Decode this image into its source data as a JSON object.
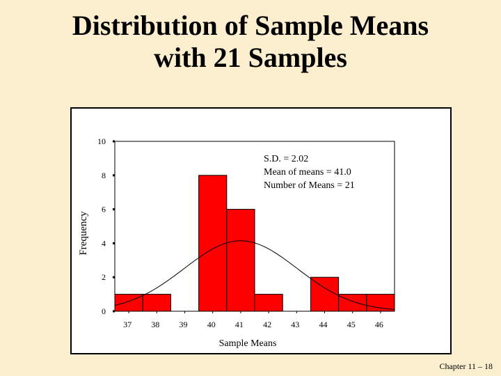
{
  "slide": {
    "title_line1": "Distribution of Sample Means",
    "title_line2": "with 21 Samples",
    "footer": "Chapter 11 – 18"
  },
  "chart_data": {
    "type": "bar",
    "x": [
      37,
      38,
      39,
      40,
      41,
      42,
      43,
      44,
      45,
      46
    ],
    "values": [
      1,
      1,
      0,
      8,
      6,
      1,
      0,
      2,
      1,
      1
    ],
    "xlabel": "Sample Means",
    "ylabel": "Frequency",
    "ylim": [
      0,
      10
    ],
    "yticks": [
      0,
      2,
      4,
      6,
      8,
      10
    ],
    "bar_color": "#ff0000",
    "curve": {
      "type": "normal",
      "mean": 41.0,
      "sd": 2.02
    },
    "annotations": [
      "S.D. = 2.02",
      "Mean of means = 41.0",
      "Number of Means = 21"
    ],
    "grid": false,
    "legend": "none"
  }
}
